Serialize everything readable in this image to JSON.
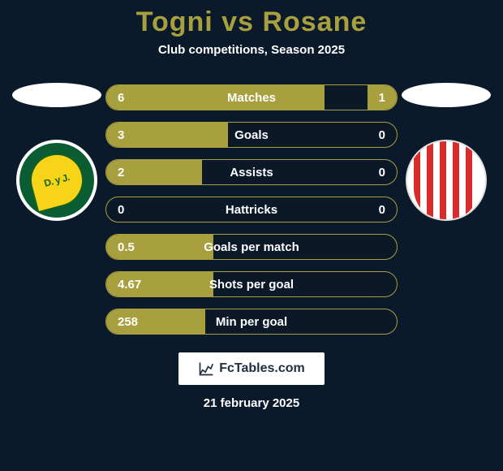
{
  "title": "Togni vs Rosane",
  "subtitle": "Club competitions, Season 2025",
  "footer_brand": "FcTables.com",
  "footer_date": "21 february 2025",
  "bar_colors": {
    "fill": "#a8a03e",
    "border": "#a8a03e",
    "background": "#0b1a2a",
    "text": "#ffffff"
  },
  "clubs": {
    "left": {
      "name": "Defensa y Justicia",
      "shield_text": "D. y J."
    },
    "right": {
      "name": "Barracas Central",
      "shield_text": ""
    }
  },
  "stats": [
    {
      "label": "Matches",
      "left_val": "6",
      "right_val": "1",
      "left_pct": 75,
      "right_pct": 10
    },
    {
      "label": "Goals",
      "left_val": "3",
      "right_val": "0",
      "left_pct": 42,
      "right_pct": 0
    },
    {
      "label": "Assists",
      "left_val": "2",
      "right_val": "0",
      "left_pct": 33,
      "right_pct": 0
    },
    {
      "label": "Hattricks",
      "left_val": "0",
      "right_val": "0",
      "left_pct": 0,
      "right_pct": 0
    },
    {
      "label": "Goals per match",
      "left_val": "0.5",
      "right_val": "",
      "left_pct": 37,
      "right_pct": 0
    },
    {
      "label": "Shots per goal",
      "left_val": "4.67",
      "right_val": "",
      "left_pct": 37,
      "right_pct": 0
    },
    {
      "label": "Min per goal",
      "left_val": "258",
      "right_val": "",
      "left_pct": 34,
      "right_pct": 0
    }
  ]
}
